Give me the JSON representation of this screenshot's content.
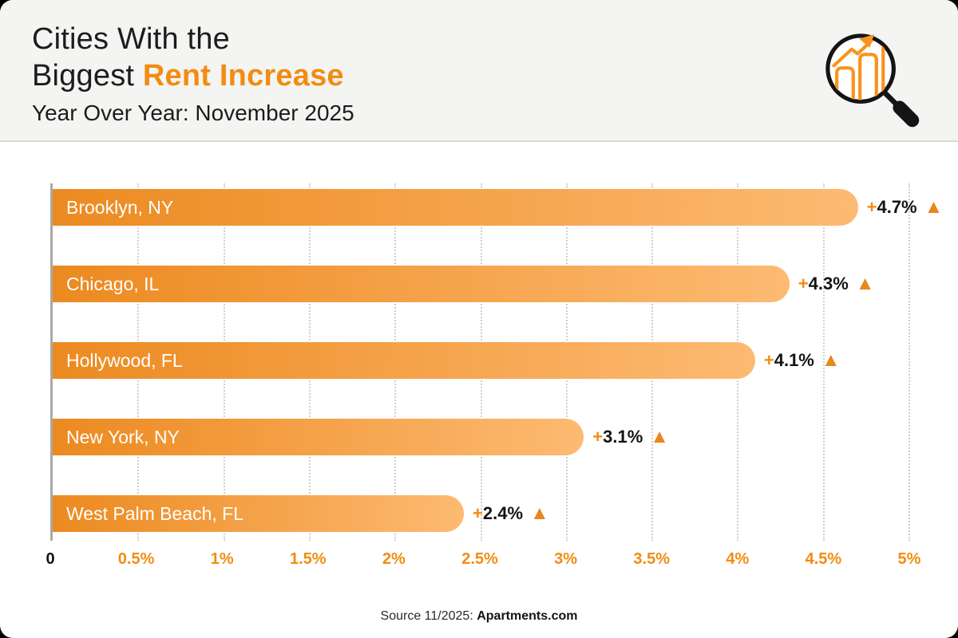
{
  "header": {
    "title_line1": "Cities With the",
    "title_line2_prefix": "Biggest ",
    "title_line2_highlight": "Rent Increase",
    "subtitle": "Year Over Year: November 2025",
    "icon": "magnifying-glass-bar-chart"
  },
  "chart_data": {
    "type": "bar",
    "orientation": "horizontal",
    "title": "Cities With the Biggest Rent Increase",
    "subtitle": "Year Over Year: November 2025",
    "categories": [
      "Brooklyn, NY",
      "Chicago, IL",
      "Hollywood, FL",
      "New York, NY",
      "West Palm Beach, FL"
    ],
    "values": [
      4.7,
      4.3,
      4.1,
      3.1,
      2.4
    ],
    "value_labels": [
      "+4.7%",
      "+4.3%",
      "+4.1%",
      "+3.1%",
      "+2.4%"
    ],
    "xlim": [
      0,
      5
    ],
    "x_ticks": [
      {
        "value": 0,
        "label": "0"
      },
      {
        "value": 0.5,
        "label": "0.5%"
      },
      {
        "value": 1,
        "label": "1%"
      },
      {
        "value": 1.5,
        "label": "1.5%"
      },
      {
        "value": 2,
        "label": "2%"
      },
      {
        "value": 2.5,
        "label": "2.5%"
      },
      {
        "value": 3,
        "label": "3%"
      },
      {
        "value": 3.5,
        "label": "3.5%"
      },
      {
        "value": 4,
        "label": "4%"
      },
      {
        "value": 4.5,
        "label": "4.5%"
      },
      {
        "value": 5,
        "label": "5%"
      }
    ],
    "grid": "vertical-dotted",
    "legend": "none"
  },
  "footer": {
    "source_prefix": "Source 11/2025: ",
    "source_brand": "Apartments.com"
  },
  "colors": {
    "accent_orange": "#f28c11",
    "bar_gradient_start": "#ec8a20",
    "bar_gradient_end": "#fdba72",
    "triangle_orange": "#e8871c",
    "header_bg": "#f4f4f2",
    "body_bg": "#ffffff",
    "page_bg": "#000000",
    "text_dark": "#1a1a1a"
  }
}
